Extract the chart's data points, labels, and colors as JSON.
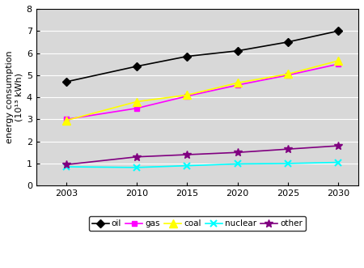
{
  "years": [
    2003,
    2010,
    2015,
    2020,
    2025,
    2030
  ],
  "oil": [
    4.7,
    5.4,
    5.85,
    6.1,
    6.5,
    7.0
  ],
  "gas": [
    3.0,
    3.5,
    4.05,
    4.55,
    5.0,
    5.5
  ],
  "coal": [
    2.95,
    3.8,
    4.1,
    4.65,
    5.05,
    5.65
  ],
  "nuclear": [
    0.85,
    0.82,
    0.9,
    0.98,
    1.0,
    1.05
  ],
  "other": [
    0.95,
    1.3,
    1.4,
    1.5,
    1.65,
    1.8
  ],
  "oil_color": "#000000",
  "gas_color": "#ff00ff",
  "coal_color": "#ffff00",
  "nuclear_color": "#00ffff",
  "other_color": "#800080",
  "ylabel_line1": "energy consumption",
  "ylabel_line2": "(10¹³ kWh)",
  "ylim": [
    0,
    8
  ],
  "yticks": [
    0,
    1,
    2,
    3,
    4,
    5,
    6,
    7,
    8
  ],
  "plot_bg": "#d8d8d8",
  "fig_bg": "#ffffff",
  "grid_color": "#ffffff",
  "border_color": "#000000",
  "tick_fontsize": 8,
  "label_fontsize": 8,
  "legend_labels": [
    "oil",
    "gas",
    "coal",
    "nuclear",
    "other"
  ]
}
